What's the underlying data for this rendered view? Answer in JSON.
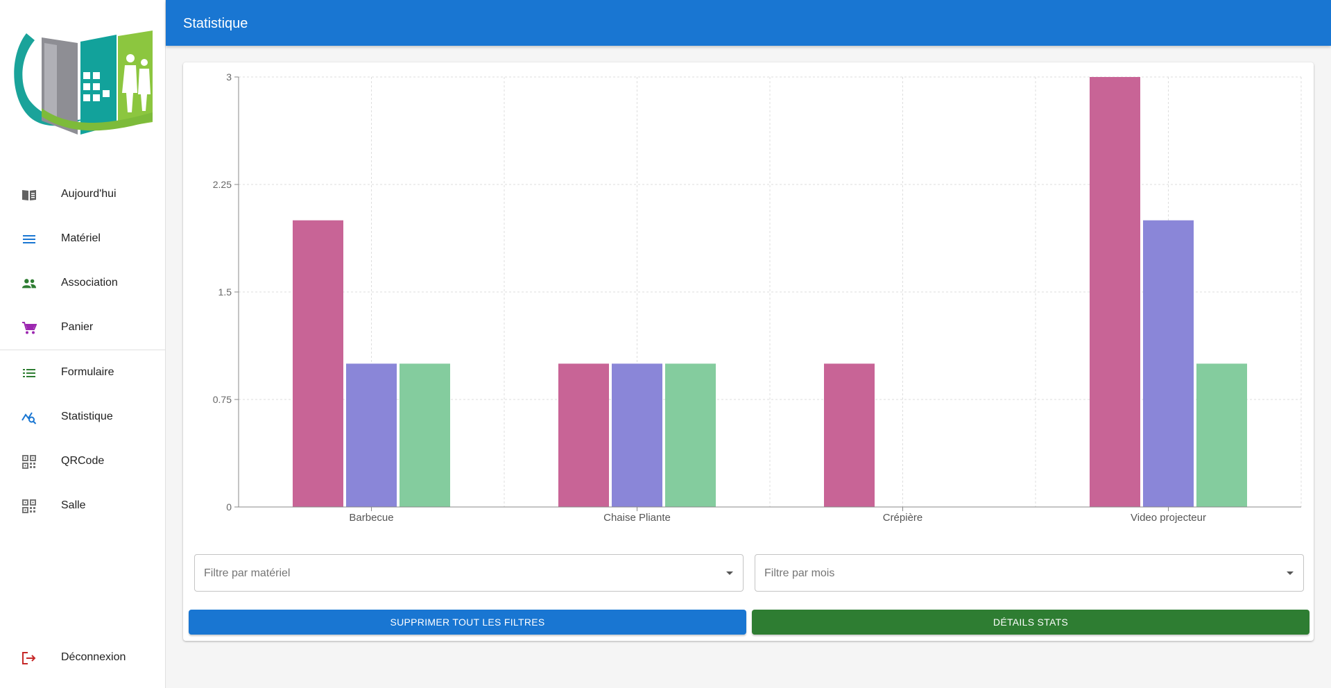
{
  "app": {
    "title": "Statistique"
  },
  "sidebar": {
    "items": [
      {
        "label": "Aujourd'hui",
        "icon": "book-open-icon",
        "color": "#616161"
      },
      {
        "label": "Matériel",
        "icon": "menu-lines-icon",
        "color": "#1976d2"
      },
      {
        "label": "Association",
        "icon": "people-icon",
        "color": "#2e7d32"
      },
      {
        "label": "Panier",
        "icon": "cart-icon",
        "color": "#9c27b0"
      },
      {
        "label": "Formulaire",
        "icon": "list-icon",
        "color": "#2e7d32"
      },
      {
        "label": "Statistique",
        "icon": "chart-search-icon",
        "color": "#1976d2"
      },
      {
        "label": "QRCode",
        "icon": "qrcode-icon",
        "color": "#757575"
      },
      {
        "label": "Salle",
        "icon": "qrcode-icon",
        "color": "#757575"
      }
    ],
    "logout": {
      "label": "Déconnexion",
      "icon": "logout-icon",
      "color": "#c62828"
    }
  },
  "filters": {
    "material_placeholder": "Filtre par matériel",
    "month_placeholder": "Filtre par mois"
  },
  "buttons": {
    "clear_label": "SUPPRIMER TOUT LES FILTRES",
    "clear_color": "#1976d2",
    "details_label": "DÉTAILS STATS",
    "details_color": "#2e7d32"
  },
  "chart_data": {
    "type": "bar",
    "categories": [
      "Barbecue",
      "Chaise Pliante",
      "Crépière",
      "Video projecteur"
    ],
    "series": [
      {
        "values": [
          2,
          1,
          1,
          3
        ],
        "color": "#c86496"
      },
      {
        "values": [
          1,
          1,
          0,
          2
        ],
        "color": "#8a86d8"
      },
      {
        "values": [
          1,
          1,
          0,
          1
        ],
        "color": "#84cc9e"
      }
    ],
    "yticks": [
      "0",
      "0.75",
      "1.5",
      "2.25",
      "3"
    ],
    "ylim": [
      0,
      3
    ],
    "grid": true,
    "title": "",
    "xlabel": "",
    "ylabel": ""
  }
}
